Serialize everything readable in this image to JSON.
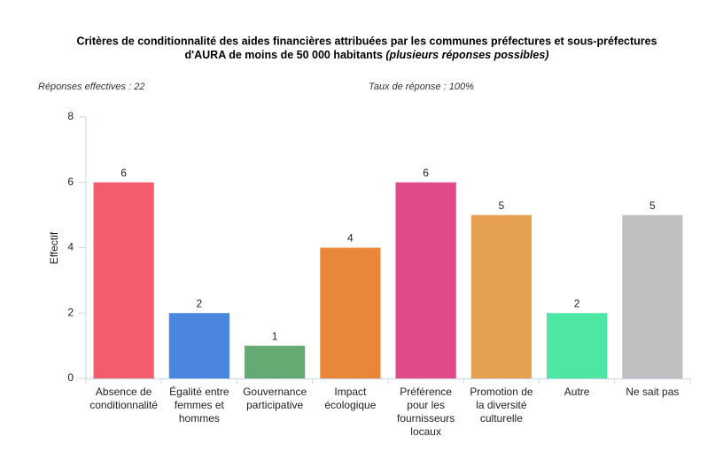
{
  "chart_data": {
    "type": "bar",
    "title_lines": [
      "Critères de conditionnalité des aides financières attribuées par les communes préfectures et sous-préfectures",
      "d'AURA de moins de 50 000 habitants"
    ],
    "title_note": "(plusieurs réponses possibles)",
    "subtitle_left": "Réponses effectives : 22",
    "subtitle_right": "Taux de réponse : 100%",
    "y_label": "Effectif",
    "categories": [
      [
        "Absence de",
        "conditionnalité"
      ],
      [
        "Égalité entre",
        "femmes et",
        "hommes"
      ],
      [
        "Gouvernance",
        "participative"
      ],
      [
        "Impact",
        "écologique"
      ],
      [
        "Préférence",
        "pour les",
        "fournisseurs",
        "locaux"
      ],
      [
        "Promotion de",
        "la diversité",
        "culturelle"
      ],
      [
        "Autre"
      ],
      [
        "Ne sait pas"
      ]
    ],
    "values": [
      6,
      2,
      1,
      4,
      6,
      5,
      2,
      5
    ],
    "colors": [
      "#f25c6c",
      "#4a86e0",
      "#66a973",
      "#e8873a",
      "#e0498a",
      "#e5a151",
      "#4de6a3",
      "#bfbfbf"
    ],
    "ylim": [
      0,
      8
    ],
    "yticks": [
      0,
      2,
      4,
      6,
      8
    ]
  }
}
